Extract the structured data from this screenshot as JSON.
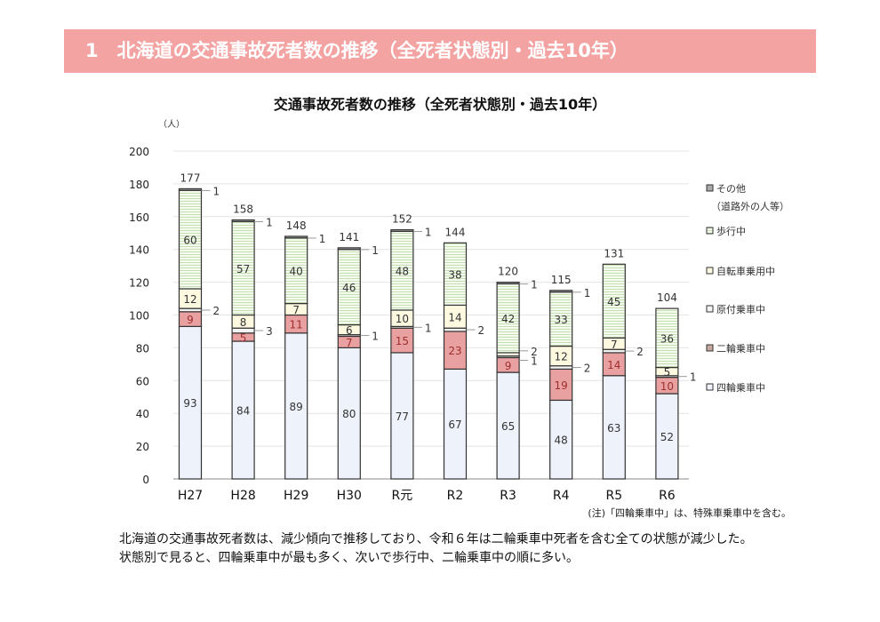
{
  "header": {
    "title": "1　北海道の交通事故死者数の推移（全死者状態別・過去10年）"
  },
  "chart_data": {
    "type": "bar",
    "stacked": true,
    "title": "交通事故死者数の推移（全死者状態別・過去10年）",
    "ylabel": "（人）",
    "ylim": [
      0,
      200
    ],
    "yticks": [
      0,
      20,
      40,
      60,
      80,
      100,
      120,
      140,
      160,
      180,
      200
    ],
    "categories": [
      "H27",
      "H28",
      "H29",
      "H30",
      "R元",
      "R2",
      "R3",
      "R4",
      "R5",
      "R6"
    ],
    "series": [
      {
        "name": "四輪乗車中",
        "color": "#eef2fb",
        "values": [
          93,
          84,
          89,
          80,
          77,
          67,
          65,
          48,
          63,
          52
        ]
      },
      {
        "name": "二輪乗車中",
        "color": "#e8a0a0",
        "values": [
          9,
          5,
          11,
          7,
          15,
          23,
          9,
          19,
          14,
          10
        ]
      },
      {
        "name": "原付乗車中",
        "color": "#f4f4f4",
        "values": [
          2,
          3,
          0,
          1,
          1,
          2,
          1,
          2,
          2,
          1
        ]
      },
      {
        "name": "自転車乗用中",
        "color": "#fdf8e0",
        "values": [
          12,
          8,
          7,
          6,
          10,
          14,
          2,
          12,
          7,
          5
        ]
      },
      {
        "name": "歩行中",
        "color": "#eef6e6",
        "values": [
          60,
          57,
          40,
          46,
          48,
          38,
          42,
          33,
          45,
          36
        ]
      },
      {
        "name": "その他",
        "color": "#aaaaaa",
        "values": [
          1,
          1,
          1,
          1,
          1,
          0,
          1,
          1,
          0,
          0
        ]
      }
    ],
    "totals": [
      177,
      158,
      148,
      141,
      152,
      144,
      120,
      115,
      131,
      104
    ],
    "legend": [
      "その他",
      "（道路外の人等）",
      "歩行中",
      "自転車乗用中",
      "原付乗車中",
      "二輪乗車中",
      "四輪乗車中"
    ],
    "legend_placement": "right"
  },
  "note": "(注)「四輪乗車中」は、特殊車乗車中を含む。",
  "body": [
    "北海道の交通事故死者数は、減少傾向で推移しており、令和６年は二輪乗車中死者を含む全ての状態が減少した。",
    "状態別で見ると、四輪乗車中が最も多く、次いで歩行中、二輪乗車中の順に多い。"
  ]
}
